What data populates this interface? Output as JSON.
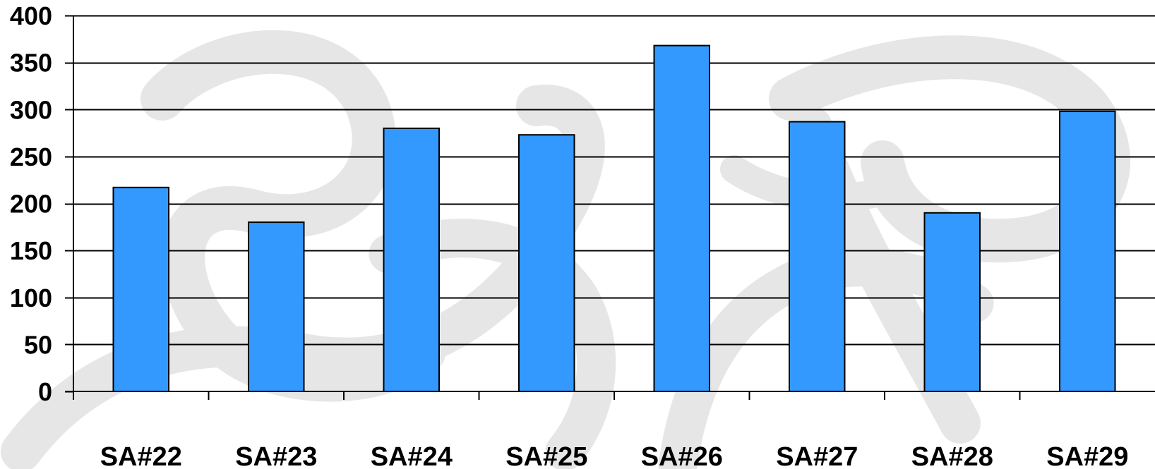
{
  "chart_data": {
    "type": "bar",
    "categories": [
      "SA#22",
      "SA#23",
      "SA#24",
      "SA#25",
      "SA#26",
      "SA#27",
      "SA#28",
      "SA#29"
    ],
    "values": [
      217,
      180,
      280,
      273,
      368,
      287,
      190,
      298
    ],
    "ylim": [
      0,
      400
    ],
    "yticks": [
      0,
      50,
      100,
      150,
      200,
      250,
      300,
      350,
      400
    ],
    "title": "",
    "xlabel": "",
    "ylabel": "",
    "grid": true,
    "legend": "none",
    "bar_color": "#3399ff",
    "bar_border_color": "#000000",
    "gridline_color": "#000000",
    "watermark_color": "#e6e6e6"
  }
}
